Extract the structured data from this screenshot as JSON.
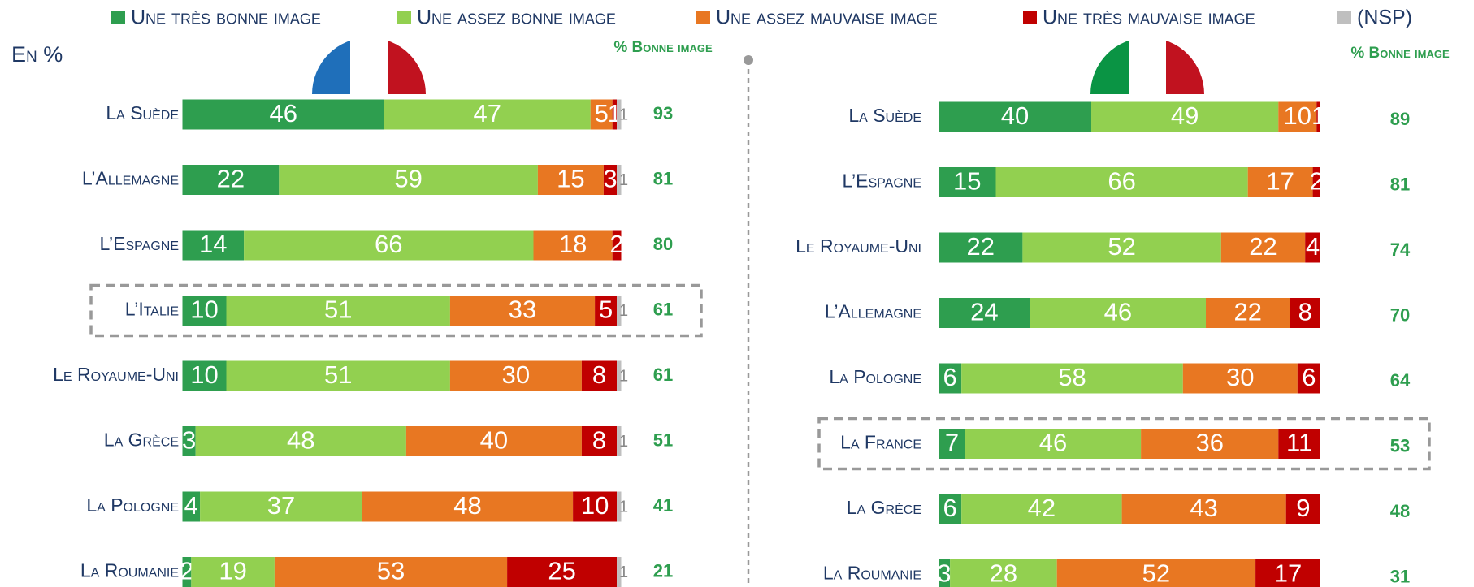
{
  "unit_label": "En %",
  "chart_data": [
    {
      "type": "bar",
      "orientation": "horizontal",
      "stacked": true,
      "legend": "top",
      "highlight": 3,
      "xlim": [
        0,
        100
      ],
      "categories": [
        "La Suède",
        "L’Allemagne",
        "L’Espagne",
        "L’Italie",
        "Le Royaume-Uni",
        "La Grèce",
        "La Pologne",
        "La Roumanie"
      ],
      "series": [
        {
          "name": "Une très bonne image",
          "color": "#2e9e4f",
          "values": [
            46,
            22,
            14,
            10,
            10,
            3,
            4,
            2
          ]
        },
        {
          "name": "Une assez bonne image",
          "color": "#92d050",
          "values": [
            47,
            59,
            66,
            51,
            51,
            48,
            37,
            19
          ]
        },
        {
          "name": "Une assez mauvaise image",
          "color": "#e87722",
          "values": [
            5,
            15,
            18,
            33,
            30,
            40,
            48,
            53
          ]
        },
        {
          "name": "Une très mauvaise image",
          "color": "#c00000",
          "values": [
            1,
            3,
            2,
            5,
            8,
            8,
            10,
            25
          ]
        },
        {
          "name": "(NSP)",
          "color": "#bfbfbf",
          "values": [
            1,
            1,
            null,
            1,
            1,
            1,
            1,
            1
          ]
        }
      ],
      "good_image": {
        "title": "% Bonne image",
        "color": "#2e9e4f",
        "values": [
          93,
          81,
          80,
          61,
          61,
          51,
          41,
          21
        ]
      }
    },
    {
      "type": "bar",
      "orientation": "horizontal",
      "stacked": true,
      "highlight": 5,
      "xlim": [
        0,
        100
      ],
      "categories": [
        "La Suède",
        "L’Espagne",
        "Le Royaume-Uni",
        "L’Allemagne",
        "La Pologne",
        "La France",
        "La Grèce",
        "La Roumanie"
      ],
      "series": [
        {
          "name": "Une très bonne image",
          "color": "#2e9e4f",
          "values": [
            40,
            15,
            22,
            24,
            6,
            7,
            6,
            3
          ]
        },
        {
          "name": "Une assez bonne image",
          "color": "#92d050",
          "values": [
            49,
            66,
            52,
            46,
            58,
            46,
            42,
            28
          ]
        },
        {
          "name": "Une assez mauvaise image",
          "color": "#e87722",
          "values": [
            10,
            17,
            22,
            22,
            30,
            36,
            43,
            52
          ]
        },
        {
          "name": "Une très mauvaise image",
          "color": "#c00000",
          "values": [
            1,
            2,
            4,
            8,
            6,
            11,
            9,
            17
          ]
        }
      ],
      "good_image": {
        "title": "% Bonne image",
        "color": "#2e9e4f",
        "values": [
          89,
          81,
          74,
          70,
          64,
          53,
          48,
          31
        ]
      }
    }
  ]
}
